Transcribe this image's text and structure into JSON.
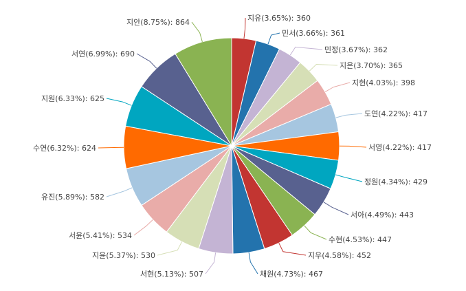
{
  "chart_data": {
    "type": "pie",
    "title": "",
    "slices": [
      {
        "name": "지유",
        "percent": "3.65%",
        "value": 360,
        "color": "#c23531"
      },
      {
        "name": "민서",
        "percent": "3.66%",
        "value": 361,
        "color": "#2373ad"
      },
      {
        "name": "민정",
        "percent": "3.67%",
        "value": 362,
        "color": "#c4b4d4"
      },
      {
        "name": "지은",
        "percent": "3.70%",
        "value": 365,
        "color": "#d6dfb6"
      },
      {
        "name": "지현",
        "percent": "4.03%",
        "value": 398,
        "color": "#e9aca9"
      },
      {
        "name": "도연",
        "percent": "4.22%",
        "value": 417,
        "color": "#a6c6e0"
      },
      {
        "name": "서영",
        "percent": "4.22%",
        "value": 417,
        "color": "#ff6a00"
      },
      {
        "name": "정원",
        "percent": "4.34%",
        "value": 429,
        "color": "#00a6c0"
      },
      {
        "name": "서아",
        "percent": "4.49%",
        "value": 443,
        "color": "#58618f"
      },
      {
        "name": "수현",
        "percent": "4.53%",
        "value": 447,
        "color": "#8ab352"
      },
      {
        "name": "지우",
        "percent": "4.58%",
        "value": 452,
        "color": "#c23531"
      },
      {
        "name": "채원",
        "percent": "4.73%",
        "value": 467,
        "color": "#2373ad"
      },
      {
        "name": "서현",
        "percent": "5.13%",
        "value": 507,
        "color": "#c4b4d4"
      },
      {
        "name": "지윤",
        "percent": "5.37%",
        "value": 530,
        "color": "#d6dfb6"
      },
      {
        "name": "서윤",
        "percent": "5.41%",
        "value": 534,
        "color": "#e9aca9"
      },
      {
        "name": "유진",
        "percent": "5.89%",
        "value": 582,
        "color": "#a6c6e0"
      },
      {
        "name": "수연",
        "percent": "6.32%",
        "value": 624,
        "color": "#ff6a00"
      },
      {
        "name": "지원",
        "percent": "6.33%",
        "value": 625,
        "color": "#00a6c0"
      },
      {
        "name": "서연",
        "percent": "6.99%",
        "value": 690,
        "color": "#58618f"
      },
      {
        "name": "지안",
        "percent": "8.75%",
        "value": 864,
        "color": "#8ab352"
      }
    ]
  }
}
